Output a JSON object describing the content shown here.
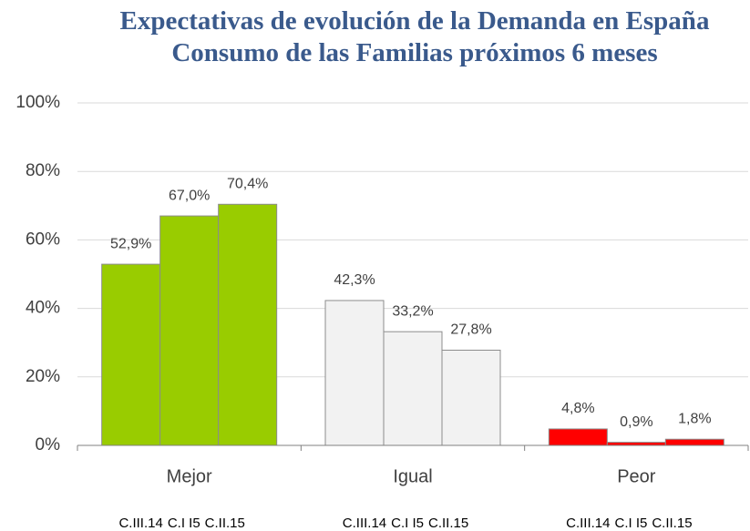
{
  "chart_data": {
    "type": "bar",
    "title": "Expectativas de evolución de la Demanda en España Consumo de las Familias próximos 6 meses",
    "categories": [
      "Mejor",
      "Igual",
      "Peor"
    ],
    "category_colors": [
      "#99cc00",
      "#f2f2f2",
      "#ff0000"
    ],
    "series": [
      {
        "name": "C.III.14",
        "values": [
          52.9,
          42.3,
          4.8
        ],
        "value_labels": [
          "52,9%",
          "42,3%",
          "4,8%"
        ]
      },
      {
        "name": "C.I I5",
        "values": [
          67.0,
          33.2,
          0.9
        ],
        "value_labels": [
          "67,0%",
          "33,2%",
          "0,9%"
        ]
      },
      {
        "name": "C.II.15",
        "values": [
          70.4,
          27.8,
          1.8
        ],
        "value_labels": [
          "70,4%",
          "27,8%",
          "1,8%"
        ]
      }
    ],
    "ylim": [
      0,
      100
    ],
    "yticks": [
      {
        "value": 0,
        "label": "0%"
      },
      {
        "value": 20,
        "label": "20%"
      },
      {
        "value": 40,
        "label": "40%"
      },
      {
        "value": 60,
        "label": "60%"
      },
      {
        "value": 80,
        "label": "80%"
      },
      {
        "value": 100,
        "label": "100%"
      }
    ],
    "grid": true
  }
}
